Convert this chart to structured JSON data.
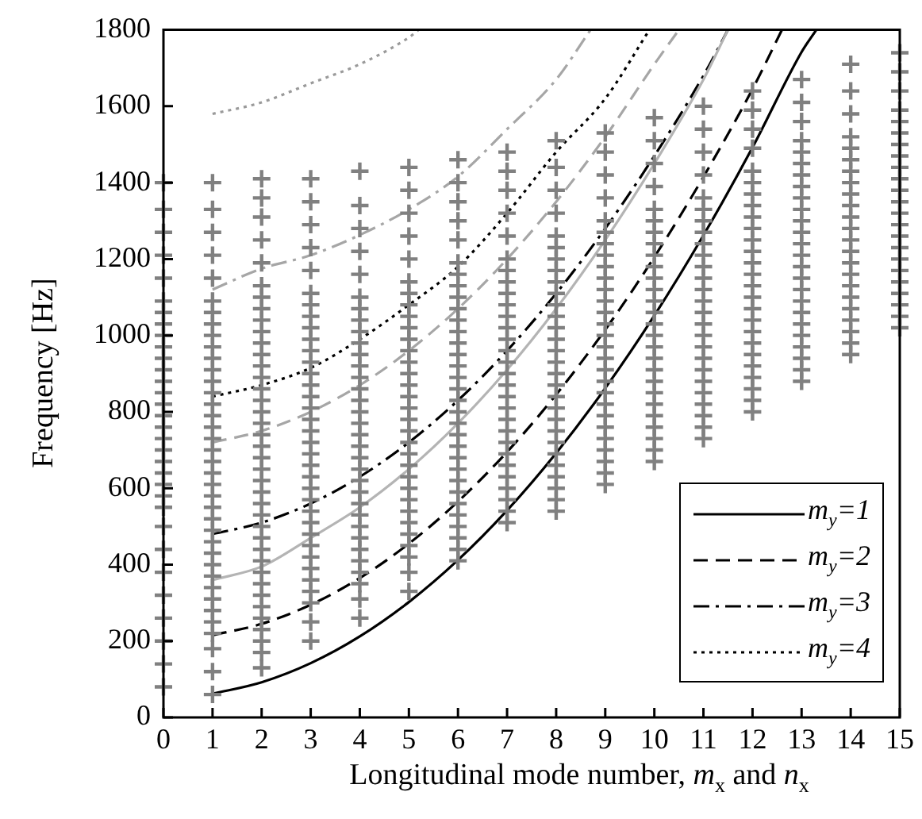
{
  "chart_data": {
    "type": "line",
    "xlabel": "Longitudinal mode number, m$_{x}$ and n$_{x}$",
    "ylabel": "Frequency [Hz]",
    "xlim": [
      0,
      15
    ],
    "xticks": [
      0,
      1,
      2,
      3,
      4,
      5,
      6,
      7,
      8,
      9,
      10,
      11,
      12,
      13,
      14,
      15
    ],
    "ylim": [
      0,
      1800
    ],
    "yticks": [
      0,
      200,
      400,
      600,
      800,
      1000,
      1200,
      1400,
      1600,
      1800
    ],
    "legend": "bottom right",
    "series": [
      {
        "type": "scatter",
        "marker": "cross",
        "color": "#808080",
        "x": [
          0,
          0,
          0,
          0,
          0,
          0,
          0,
          0,
          0,
          0,
          0,
          0,
          0,
          0,
          0,
          0,
          0,
          0,
          0,
          0,
          0,
          0,
          0,
          0,
          0,
          0,
          0,
          0,
          0,
          0,
          0,
          0
        ],
        "values": [
          80,
          140,
          200,
          260,
          320,
          380,
          440,
          500,
          550,
          580,
          610,
          640,
          670,
          700,
          730,
          760,
          790,
          820,
          850,
          880,
          910,
          940,
          970,
          1000,
          1030,
          1060,
          1090,
          1150,
          1210,
          1270,
          1330,
          1400
        ]
      },
      {
        "type": "scatter",
        "marker": "cross",
        "color": "#808080",
        "x": [
          1,
          1,
          1,
          1,
          1,
          1,
          1,
          1,
          1,
          1,
          1,
          1,
          1,
          1,
          1,
          1,
          1,
          1,
          1,
          1,
          1,
          1,
          1,
          1,
          1,
          1,
          1,
          1,
          1,
          1,
          1,
          1,
          1,
          1,
          1,
          1,
          1,
          1
        ],
        "values": [
          60,
          120,
          180,
          220,
          250,
          280,
          310,
          340,
          370,
          400,
          430,
          460,
          490,
          520,
          550,
          580,
          610,
          640,
          670,
          700,
          730,
          760,
          790,
          820,
          850,
          880,
          910,
          940,
          970,
          1000,
          1030,
          1060,
          1090,
          1150,
          1210,
          1270,
          1330,
          1400
        ]
      },
      {
        "type": "scatter",
        "marker": "cross",
        "color": "#808080",
        "x": [
          2,
          2,
          2,
          2,
          2,
          2,
          2,
          2,
          2,
          2,
          2,
          2,
          2,
          2,
          2,
          2,
          2,
          2,
          2,
          2,
          2,
          2,
          2,
          2,
          2,
          2,
          2,
          2,
          2,
          2,
          2,
          2,
          2,
          2,
          2,
          2,
          2,
          2,
          2
        ],
        "values": [
          130,
          170,
          200,
          230,
          260,
          290,
          320,
          350,
          380,
          410,
          440,
          470,
          500,
          530,
          560,
          590,
          620,
          650,
          680,
          710,
          740,
          770,
          800,
          830,
          860,
          890,
          920,
          950,
          980,
          1010,
          1040,
          1070,
          1100,
          1130,
          1190,
          1250,
          1310,
          1360,
          1410
        ]
      },
      {
        "type": "scatter",
        "marker": "cross",
        "color": "#808080",
        "x": [
          3,
          3,
          3,
          3,
          3,
          3,
          3,
          3,
          3,
          3,
          3,
          3,
          3,
          3,
          3,
          3,
          3,
          3,
          3,
          3,
          3,
          3,
          3,
          3,
          3,
          3,
          3,
          3,
          3,
          3,
          3,
          3,
          3,
          3,
          3
        ],
        "values": [
          200,
          250,
          300,
          330,
          360,
          390,
          420,
          450,
          480,
          510,
          540,
          570,
          600,
          630,
          660,
          690,
          720,
          750,
          780,
          810,
          840,
          870,
          900,
          930,
          960,
          990,
          1020,
          1050,
          1080,
          1110,
          1170,
          1230,
          1290,
          1350,
          1410
        ]
      },
      {
        "type": "scatter",
        "marker": "cross",
        "color": "#808080",
        "x": [
          4,
          4,
          4,
          4,
          4,
          4,
          4,
          4,
          4,
          4,
          4,
          4,
          4,
          4,
          4,
          4,
          4,
          4,
          4,
          4,
          4,
          4,
          4,
          4,
          4,
          4,
          4,
          4,
          4,
          4,
          4,
          4,
          4
        ],
        "values": [
          260,
          310,
          350,
          380,
          410,
          440,
          470,
          500,
          530,
          560,
          590,
          620,
          650,
          680,
          710,
          740,
          770,
          800,
          830,
          860,
          890,
          920,
          950,
          980,
          1010,
          1040,
          1070,
          1100,
          1160,
          1220,
          1280,
          1340,
          1430
        ]
      },
      {
        "type": "scatter",
        "marker": "cross",
        "color": "#808080",
        "x": [
          5,
          5,
          5,
          5,
          5,
          5,
          5,
          5,
          5,
          5,
          5,
          5,
          5,
          5,
          5,
          5,
          5,
          5,
          5,
          5,
          5,
          5,
          5,
          5,
          5,
          5,
          5,
          5,
          5,
          5,
          5,
          5
        ],
        "values": [
          330,
          380,
          420,
          450,
          480,
          510,
          540,
          570,
          600,
          630,
          660,
          690,
          720,
          750,
          780,
          810,
          840,
          870,
          900,
          930,
          960,
          990,
          1020,
          1050,
          1080,
          1110,
          1140,
          1200,
          1260,
          1320,
          1380,
          1440
        ]
      },
      {
        "type": "scatter",
        "marker": "cross",
        "color": "#808080",
        "x": [
          6,
          6,
          6,
          6,
          6,
          6,
          6,
          6,
          6,
          6,
          6,
          6,
          6,
          6,
          6,
          6,
          6,
          6,
          6,
          6,
          6,
          6,
          6,
          6,
          6,
          6,
          6,
          6,
          6,
          6,
          6,
          6
        ],
        "values": [
          410,
          440,
          470,
          500,
          530,
          560,
          590,
          620,
          650,
          680,
          710,
          740,
          770,
          800,
          830,
          860,
          890,
          920,
          950,
          980,
          1010,
          1040,
          1070,
          1100,
          1130,
          1160,
          1190,
          1250,
          1300,
          1350,
          1400,
          1460
        ]
      },
      {
        "type": "scatter",
        "marker": "cross",
        "color": "#808080",
        "x": [
          7,
          7,
          7,
          7,
          7,
          7,
          7,
          7,
          7,
          7,
          7,
          7,
          7,
          7,
          7,
          7,
          7,
          7,
          7,
          7,
          7,
          7,
          7,
          7,
          7,
          7,
          7,
          7,
          7
        ],
        "values": [
          510,
          540,
          570,
          600,
          630,
          660,
          690,
          720,
          750,
          780,
          810,
          840,
          870,
          900,
          930,
          960,
          990,
          1020,
          1050,
          1080,
          1110,
          1140,
          1170,
          1200,
          1260,
          1320,
          1380,
          1430,
          1480
        ]
      },
      {
        "type": "scatter",
        "marker": "cross",
        "color": "#808080",
        "x": [
          8,
          8,
          8,
          8,
          8,
          8,
          8,
          8,
          8,
          8,
          8,
          8,
          8,
          8,
          8,
          8,
          8,
          8,
          8,
          8,
          8,
          8,
          8,
          8,
          8,
          8,
          8,
          8,
          8
        ],
        "values": [
          540,
          570,
          600,
          630,
          660,
          690,
          720,
          750,
          780,
          810,
          840,
          870,
          900,
          930,
          960,
          990,
          1020,
          1050,
          1080,
          1110,
          1140,
          1170,
          1200,
          1230,
          1260,
          1320,
          1380,
          1440,
          1510
        ]
      },
      {
        "type": "scatter",
        "marker": "cross",
        "color": "#808080",
        "x": [
          9,
          9,
          9,
          9,
          9,
          9,
          9,
          9,
          9,
          9,
          9,
          9,
          9,
          9,
          9,
          9,
          9,
          9,
          9,
          9,
          9,
          9,
          9,
          9,
          9,
          9,
          9,
          9
        ],
        "values": [
          610,
          640,
          670,
          700,
          730,
          760,
          790,
          820,
          850,
          880,
          910,
          940,
          970,
          1000,
          1030,
          1060,
          1090,
          1120,
          1150,
          1180,
          1210,
          1240,
          1270,
          1300,
          1360,
          1420,
          1480,
          1530
        ]
      },
      {
        "type": "scatter",
        "marker": "cross",
        "color": "#808080",
        "x": [
          10,
          10,
          10,
          10,
          10,
          10,
          10,
          10,
          10,
          10,
          10,
          10,
          10,
          10,
          10,
          10,
          10,
          10,
          10,
          10,
          10,
          10,
          10,
          10,
          10,
          10,
          10
        ],
        "values": [
          670,
          700,
          730,
          760,
          790,
          820,
          850,
          880,
          910,
          940,
          970,
          1000,
          1030,
          1060,
          1090,
          1120,
          1150,
          1180,
          1210,
          1240,
          1270,
          1300,
          1330,
          1390,
          1450,
          1510,
          1570
        ]
      },
      {
        "type": "scatter",
        "marker": "cross",
        "color": "#808080",
        "x": [
          11,
          11,
          11,
          11,
          11,
          11,
          11,
          11,
          11,
          11,
          11,
          11,
          11,
          11,
          11,
          11,
          11,
          11,
          11,
          11,
          11,
          11,
          11,
          11,
          11,
          11
        ],
        "values": [
          730,
          760,
          790,
          820,
          850,
          880,
          910,
          940,
          970,
          1000,
          1030,
          1060,
          1090,
          1120,
          1150,
          1180,
          1210,
          1240,
          1270,
          1300,
          1330,
          1360,
          1420,
          1480,
          1540,
          1600
        ]
      },
      {
        "type": "scatter",
        "marker": "cross",
        "color": "#808080",
        "x": [
          12,
          12,
          12,
          12,
          12,
          12,
          12,
          12,
          12,
          12,
          12,
          12,
          12,
          12,
          12,
          12,
          12,
          12,
          12,
          12,
          12,
          12,
          12,
          12,
          12,
          12
        ],
        "values": [
          800,
          830,
          860,
          890,
          920,
          950,
          980,
          1010,
          1040,
          1070,
          1100,
          1130,
          1160,
          1190,
          1220,
          1250,
          1280,
          1310,
          1340,
          1370,
          1400,
          1430,
          1490,
          1540,
          1590,
          1640
        ]
      },
      {
        "type": "scatter",
        "marker": "cross",
        "color": "#808080",
        "x": [
          13,
          13,
          13,
          13,
          13,
          13,
          13,
          13,
          13,
          13,
          13,
          13,
          13,
          13,
          13,
          13,
          13,
          13,
          13,
          13,
          13,
          13,
          13,
          13,
          13
        ],
        "values": [
          880,
          910,
          940,
          970,
          1000,
          1030,
          1060,
          1090,
          1120,
          1150,
          1180,
          1210,
          1240,
          1270,
          1300,
          1330,
          1360,
          1390,
          1420,
          1450,
          1480,
          1510,
          1560,
          1610,
          1670
        ]
      },
      {
        "type": "scatter",
        "marker": "cross",
        "color": "#808080",
        "x": [
          14,
          14,
          14,
          14,
          14,
          14,
          14,
          14,
          14,
          14,
          14,
          14,
          14,
          14,
          14,
          14,
          14,
          14,
          14,
          14,
          14,
          14,
          14
        ],
        "values": [
          950,
          980,
          1010,
          1040,
          1070,
          1100,
          1130,
          1160,
          1190,
          1220,
          1250,
          1280,
          1310,
          1340,
          1370,
          1400,
          1430,
          1460,
          1490,
          1520,
          1580,
          1640,
          1710
        ]
      },
      {
        "type": "scatter",
        "marker": "cross",
        "color": "#808080",
        "x": [
          15,
          15,
          15,
          15,
          15,
          15,
          15,
          15,
          15,
          15,
          15,
          15,
          15,
          15,
          15,
          15,
          15,
          15,
          15,
          15,
          15,
          15,
          15
        ],
        "values": [
          1020,
          1050,
          1080,
          1110,
          1140,
          1170,
          1200,
          1230,
          1260,
          1290,
          1320,
          1350,
          1380,
          1410,
          1440,
          1470,
          1500,
          1530,
          1560,
          1590,
          1640,
          1690,
          1740
        ]
      },
      {
        "marker": "none",
        "line_style": "solid",
        "color": "#b4b4b4",
        "x": [
          1,
          2,
          3,
          4,
          5,
          6,
          7,
          8,
          9,
          10,
          11,
          11.5
        ],
        "values": [
          360,
          395,
          470,
          550,
          650,
          770,
          910,
          1070,
          1250,
          1450,
          1670,
          1800
        ]
      },
      {
        "marker": "none",
        "line_style": "dashed",
        "color": "#a6a6a6",
        "x": [
          1,
          2,
          3,
          4,
          5,
          6,
          7,
          8,
          9,
          10,
          10.5
        ],
        "values": [
          720,
          750,
          800,
          870,
          960,
          1070,
          1200,
          1350,
          1520,
          1710,
          1800
        ]
      },
      {
        "marker": "none",
        "line_style": "dashdot",
        "color": "#a6a6a6",
        "x": [
          1,
          2,
          3,
          4,
          5,
          6,
          7,
          8,
          8.7
        ],
        "values": [
          1120,
          1175,
          1210,
          1263,
          1330,
          1416,
          1540,
          1670,
          1800
        ]
      },
      {
        "marker": "none",
        "line_style": "dotted",
        "color": "#9a9a9a",
        "x": [
          1,
          2,
          3,
          4,
          5,
          5.2
        ],
        "values": [
          1580,
          1610,
          1660,
          1710,
          1780,
          1800
        ]
      },
      {
        "marker": "none",
        "line_style": "solid",
        "name": "m$_{y}$=1",
        "color": "#000000",
        "x": [
          1,
          2,
          3,
          4,
          5,
          6,
          7,
          8,
          9,
          10,
          11,
          12,
          13,
          13.3
        ],
        "values": [
          62,
          92,
          142,
          212,
          302,
          412,
          542,
          692,
          862,
          1052,
          1262,
          1492,
          1742,
          1800
        ]
      },
      {
        "marker": "none",
        "line_style": "dashed",
        "name": "m$_{y}$=2",
        "color": "#000000",
        "x": [
          1,
          2,
          3,
          4,
          5,
          6,
          7,
          8,
          9,
          10,
          11,
          12,
          12.6
        ],
        "values": [
          215,
          245,
          295,
          365,
          455,
          565,
          695,
          845,
          1015,
          1205,
          1415,
          1645,
          1800
        ]
      },
      {
        "marker": "none",
        "line_style": "dashdot",
        "name": "m$_{y}$=3",
        "color": "#000000",
        "x": [
          1,
          2,
          3,
          4,
          5,
          6,
          7,
          8,
          9,
          10,
          11,
          11.5
        ],
        "values": [
          480,
          510,
          560,
          630,
          720,
          830,
          960,
          1110,
          1280,
          1470,
          1680,
          1800
        ]
      },
      {
        "marker": "none",
        "line_style": "dotted",
        "name": "m$_{y}$=4",
        "color": "#000000",
        "x": [
          1,
          2,
          3,
          4,
          5,
          6,
          7,
          8,
          9,
          9.9
        ],
        "values": [
          840,
          870,
          915,
          990,
          1080,
          1180,
          1320,
          1480,
          1620,
          1800
        ]
      }
    ]
  }
}
